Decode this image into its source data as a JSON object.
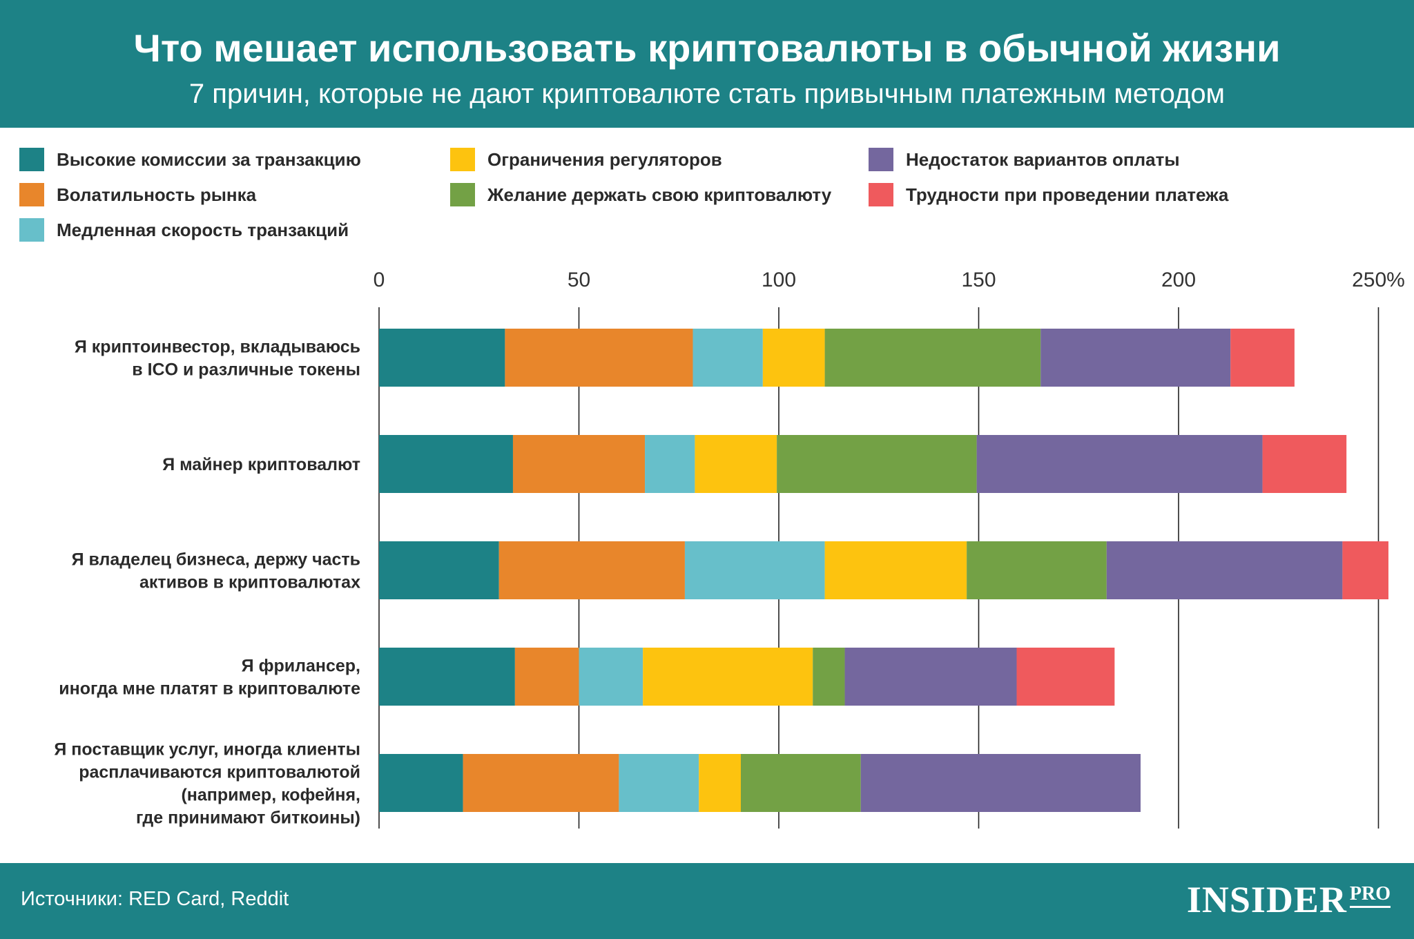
{
  "header": {
    "title": "Что мешает использовать криптовалюты в обычной жизни",
    "subtitle": "7 причин, которые не дают криптовалюте стать привычным платежным методом"
  },
  "legend": [
    {
      "label": "Высокие комиссии за транзакцию",
      "color": "#1d8286"
    },
    {
      "label": "Волатильность рынка",
      "color": "#e8862b"
    },
    {
      "label": "Медленная скорость транзакций",
      "color": "#67bfca"
    },
    {
      "label": "Ограничения регуляторов",
      "color": "#fdc30f"
    },
    {
      "label": "Желание держать свою криптовалюту",
      "color": "#73a145"
    },
    {
      "label": "Недостаток вариантов оплаты",
      "color": "#74679e"
    },
    {
      "label": "Трудности при проведении платежа",
      "color": "#ef5a5d"
    }
  ],
  "chart_data": {
    "type": "bar",
    "orientation": "horizontal",
    "stacked": true,
    "xlim": [
      0,
      250
    ],
    "ticks": [
      "0",
      "50",
      "100",
      "150",
      "200",
      "250%"
    ],
    "tick_values": [
      0,
      50,
      100,
      150,
      200,
      250
    ],
    "categories": [
      [
        "Я криптоинвестор, вкладываюсь",
        "в ICO и различные токены"
      ],
      [
        "Я майнер криптовалют"
      ],
      [
        "Я владелец бизнеса, держу часть",
        "активов в криптовалютах"
      ],
      [
        "Я фрилансер,",
        "иногда мне платят в криптовалюте"
      ],
      [
        "Я поставщик услуг, иногда клиенты",
        "расплачиваются криптовалютой",
        "(например, кофейня,",
        "где принимают биткоины)"
      ]
    ],
    "series": [
      {
        "name": "Высокие комиссии за транзакцию",
        "color": "#1d8286",
        "values": [
          31.5,
          33.5,
          30,
          34,
          21
        ]
      },
      {
        "name": "Волатильность рынка",
        "color": "#e8862b",
        "values": [
          47,
          33,
          46.5,
          16,
          39
        ]
      },
      {
        "name": "Медленная скорость транзакций",
        "color": "#67bfca",
        "values": [
          17.5,
          12.5,
          35,
          16,
          20
        ]
      },
      {
        "name": "Ограничения регуляторов",
        "color": "#fdc30f",
        "values": [
          15.5,
          20.5,
          35.5,
          42.5,
          10.5
        ]
      },
      {
        "name": "Желание держать свою криптовалюту",
        "color": "#73a145",
        "values": [
          54,
          50,
          35,
          8,
          30
        ]
      },
      {
        "name": "Недостаток вариантов оплаты",
        "color": "#74679e",
        "values": [
          47.5,
          71.5,
          59,
          43,
          70
        ]
      },
      {
        "name": "Трудности при проведении платежа",
        "color": "#ef5a5d",
        "values": [
          16,
          21,
          11.5,
          24.5,
          0
        ]
      }
    ]
  },
  "footer": {
    "source": "Источники: RED Card, Reddit",
    "logo_main": "INSIDER",
    "logo_sub": "PRO"
  }
}
